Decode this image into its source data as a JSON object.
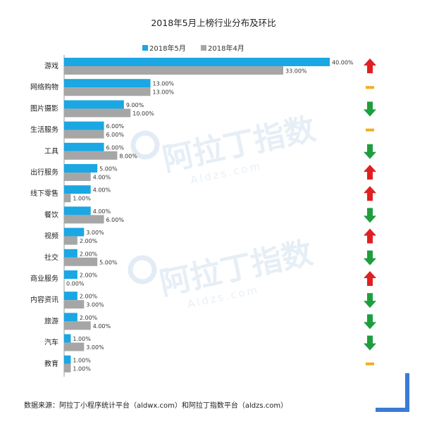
{
  "chart_data": {
    "type": "bar",
    "orientation": "horizontal",
    "title": "2018年5月上榜行业分布及环比",
    "categories": [
      "游戏",
      "网络购物",
      "图片摄影",
      "生活服务",
      "工具",
      "出行服务",
      "线下零售",
      "餐饮",
      "视频",
      "社交",
      "商业服务",
      "内容资讯",
      "旅游",
      "汽车",
      "教育"
    ],
    "series": [
      {
        "name": "2018年5月",
        "color": "#1aa7e3",
        "values": [
          40,
          13,
          9,
          6,
          6,
          5,
          4,
          4,
          3,
          2,
          2,
          2,
          2,
          1,
          1
        ],
        "labels": [
          "40.00%",
          "13.00%",
          "9.00%",
          "6.00%",
          "6.00%",
          "5.00%",
          "4.00%",
          "4.00%",
          "3.00%",
          "2.00%",
          "2.00%",
          "2.00%",
          "2.00%",
          "1.00%",
          "1.00%"
        ]
      },
      {
        "name": "2018年4月",
        "color": "#a6a6a6",
        "values": [
          33,
          13,
          10,
          6,
          8,
          4,
          1,
          6,
          2,
          5,
          0,
          3,
          4,
          3,
          1
        ],
        "labels": [
          "33.00%",
          "13.00%",
          "10.00%",
          "6.00%",
          "8.00%",
          "4.00%",
          "1.00%",
          "6.00%",
          "2.00%",
          "5.00%",
          "0.00%",
          "3.00%",
          "4.00%",
          "3.00%",
          "1.00%"
        ]
      }
    ],
    "xlim": [
      0,
      40
    ],
    "unit": "%",
    "legend_position": "top-center",
    "grid": false,
    "trend": [
      "up",
      "flat",
      "down",
      "flat",
      "down",
      "up",
      "up",
      "down",
      "up",
      "down",
      "up",
      "down",
      "down",
      "down",
      "flat"
    ],
    "trend_colors": {
      "up": "#e02020",
      "down": "#1e9e3e",
      "flat": "#f2b01e"
    }
  },
  "watermark": {
    "brand": "阿拉丁指数",
    "site": "Aldzs.com"
  },
  "footer": {
    "source_note": "数据来源：阿拉丁小程序统计平台（aldwx.com）和阿拉丁指数平台（aldzs.com）"
  },
  "colors": {
    "corner_accent": "#3a7bd5",
    "axis": "#999999"
  }
}
